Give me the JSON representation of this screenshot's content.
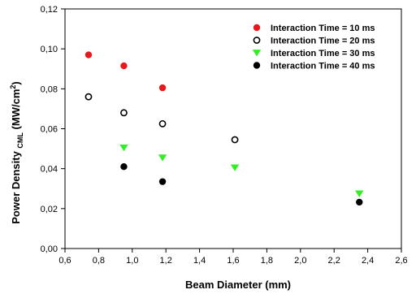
{
  "chart_data": {
    "type": "scatter",
    "xlabel": "Beam Diameter (mm)",
    "ylabel": {
      "main": "Power Density ",
      "sub": "CML",
      "unit_prefix": " (MW/cm",
      "unit_sup": "2",
      "unit_suffix": ")"
    },
    "xlim": [
      0.6,
      2.6
    ],
    "ylim": [
      0.0,
      0.12
    ],
    "x_ticks": [
      0.6,
      0.8,
      1.0,
      1.2,
      1.4,
      1.6,
      1.8,
      2.0,
      2.2,
      2.4,
      2.6
    ],
    "x_tick_labels": [
      "0,6",
      "0,8",
      "1,0",
      "1,2",
      "1,4",
      "1,6",
      "1,8",
      "2,0",
      "2,2",
      "2,4",
      "2,6"
    ],
    "y_ticks": [
      0.0,
      0.02,
      0.04,
      0.06,
      0.08,
      0.1,
      0.12
    ],
    "y_tick_labels": [
      "0,00",
      "0,02",
      "0,04",
      "0,06",
      "0,08",
      "0,10",
      "0,12"
    ],
    "grid": false,
    "legend_position": "top-right",
    "series": [
      {
        "name": "Interaction Time = 10 ms",
        "marker": "filled-circle",
        "color": "#e8191c",
        "points": [
          [
            0.74,
            0.097
          ],
          [
            0.95,
            0.0915
          ],
          [
            1.18,
            0.0805
          ]
        ]
      },
      {
        "name": "Interaction Time = 20 ms",
        "marker": "open-circle",
        "color": "#000000",
        "points": [
          [
            0.74,
            0.076
          ],
          [
            0.95,
            0.068
          ],
          [
            1.18,
            0.0625
          ],
          [
            1.61,
            0.0545
          ]
        ]
      },
      {
        "name": "Interaction Time = 30 ms",
        "marker": "triangle-down",
        "color": "#33ee22",
        "points": [
          [
            0.95,
            0.0505
          ],
          [
            1.18,
            0.0455
          ],
          [
            1.61,
            0.0405
          ],
          [
            2.35,
            0.0275
          ]
        ]
      },
      {
        "name": "Interaction Time = 40 ms",
        "marker": "filled-circle",
        "color": "#000000",
        "points": [
          [
            0.95,
            0.041
          ],
          [
            1.18,
            0.0335
          ],
          [
            2.35,
            0.0232
          ]
        ]
      }
    ]
  }
}
